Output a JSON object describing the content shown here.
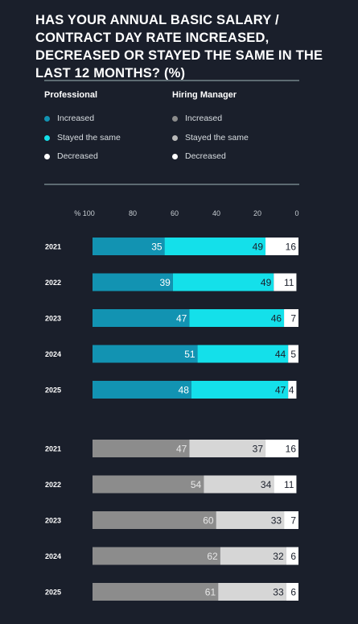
{
  "title": "HAS YOUR ANNUAL BASIC SALARY / CONTRACT DAY RATE INCREASED, DECREASED OR STAYED THE SAME IN THE LAST 12 MONTHS? (%)",
  "legend": {
    "groups": [
      {
        "name": "Professional",
        "items": [
          {
            "label": "Increased",
            "color": "#1293b2"
          },
          {
            "label": "Stayed the same",
            "color": "#14e0ea"
          },
          {
            "label": "Decreased",
            "color": "#ffffff"
          }
        ]
      },
      {
        "name": "Hiring Manager",
        "items": [
          {
            "label": "Increased",
            "color": "#8c8c8c"
          },
          {
            "label": "Stayed the same",
            "color": "#b9b9b9"
          },
          {
            "label": "Decreased",
            "color": "#ffffff"
          }
        ]
      }
    ]
  },
  "chart_data": {
    "type": "bar",
    "orientation": "horizontal-stacked",
    "axis_ticks": [
      "% 100",
      "80",
      "60",
      "40",
      "20",
      "0"
    ],
    "xlim": [
      100,
      0
    ],
    "groups": [
      {
        "name": "Professional",
        "categories": [
          "2021",
          "2022",
          "2023",
          "2024",
          "2025"
        ],
        "series": [
          {
            "name": "Increased",
            "color": "#1293b2",
            "values": [
              35,
              39,
              47,
              51,
              48
            ]
          },
          {
            "name": "Stayed the same",
            "color": "#14e0ea",
            "values": [
              49,
              49,
              46,
              44,
              47
            ]
          },
          {
            "name": "Decreased",
            "color": "#ffffff",
            "values": [
              16,
              11,
              7,
              5,
              4
            ]
          }
        ]
      },
      {
        "name": "Hiring Manager",
        "categories": [
          "2021",
          "2022",
          "2023",
          "2024",
          "2025"
        ],
        "series": [
          {
            "name": "Increased",
            "color": "#8c8c8c",
            "values": [
              47,
              54,
              60,
              62,
              61
            ]
          },
          {
            "name": "Stayed the same",
            "color": "#d6d6d6",
            "values": [
              37,
              34,
              33,
              32,
              33
            ]
          },
          {
            "name": "Decreased",
            "color": "#ffffff",
            "values": [
              16,
              11,
              7,
              6,
              6
            ]
          }
        ]
      }
    ]
  }
}
